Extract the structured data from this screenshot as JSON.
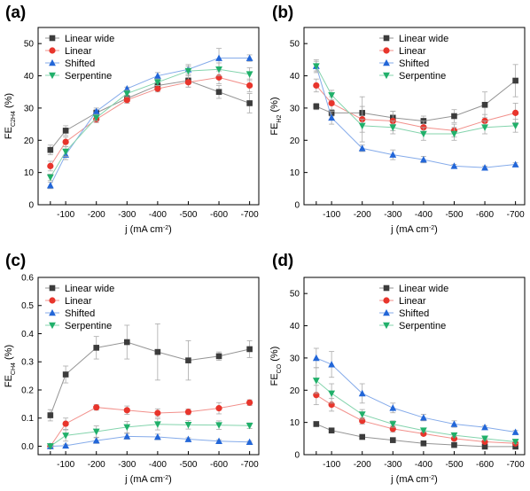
{
  "figure": {
    "styles": {
      "Linear wide": {
        "color": "#3c3c3c",
        "marker": "square"
      },
      "Linear": {
        "color": "#e8352c",
        "marker": "circle"
      },
      "Shifted": {
        "color": "#2266d8",
        "marker": "triangle-up"
      },
      "Serpentine": {
        "color": "#20b06a",
        "marker": "triangle-down"
      }
    }
  },
  "chart_data": [
    {
      "panel": "(a)",
      "type": "line",
      "xlabel": "j (mA cm-2)",
      "xlabel_main": "j (mA cm",
      "xlabel_sup": "-2",
      "xlabel_end": ")",
      "ylabel_main": "FE",
      "ylabel_sub": "C2H4",
      "ylabel_end": " (%)",
      "x": [
        -50,
        -100,
        -200,
        -300,
        -400,
        -500,
        -600,
        -700
      ],
      "xtick_labels": [
        "",
        "-100",
        "-200",
        "-300",
        "-400",
        "-500",
        "-600",
        "-700"
      ],
      "ylim": [
        0,
        55
      ],
      "yticks": [
        0,
        10,
        20,
        30,
        40,
        50
      ],
      "legend": "top-left",
      "series": [
        {
          "name": "Linear wide",
          "values": [
            17,
            23,
            28.5,
            33,
            37,
            38.5,
            35,
            31.5
          ],
          "errors": [
            1.5,
            1.5,
            1,
            1,
            1,
            2,
            2,
            3
          ]
        },
        {
          "name": "Linear",
          "values": [
            12,
            19.5,
            26.5,
            32.5,
            36,
            38,
            39.5,
            37
          ],
          "errors": [
            1.5,
            1.5,
            1,
            1,
            1,
            1.5,
            2,
            2
          ]
        },
        {
          "name": "Shifted",
          "values": [
            6,
            15.5,
            29,
            36,
            40,
            42,
            45.5,
            45.5
          ],
          "errors": [
            1,
            1.5,
            1,
            0.5,
            1,
            1.5,
            3,
            1
          ]
        },
        {
          "name": "Serpentine",
          "values": [
            8.5,
            16.5,
            27,
            34.5,
            38,
            41.5,
            42,
            40.5
          ],
          "errors": [
            1,
            1.5,
            1,
            1,
            1,
            1.5,
            2,
            2
          ]
        }
      ]
    },
    {
      "panel": "(b)",
      "type": "line",
      "xlabel": "j (mA cm-2)",
      "xlabel_main": "j (mA cm",
      "xlabel_sup": "-2",
      "xlabel_end": ")",
      "ylabel_main": "FE",
      "ylabel_sub": "H2",
      "ylabel_end": " (%)",
      "x": [
        -50,
        -100,
        -200,
        -300,
        -400,
        -500,
        -600,
        -700
      ],
      "xtick_labels": [
        "",
        "-100",
        "-200",
        "-300",
        "-400",
        "-500",
        "-600",
        "-700"
      ],
      "ylim": [
        0,
        55
      ],
      "yticks": [
        0,
        10,
        20,
        30,
        40,
        50
      ],
      "legend": "top-right",
      "series": [
        {
          "name": "Linear wide",
          "values": [
            30.5,
            28.5,
            28.5,
            27,
            26,
            27.5,
            31,
            38.5
          ],
          "errors": [
            1,
            1,
            2,
            2,
            1.5,
            2,
            4,
            5
          ]
        },
        {
          "name": "Linear",
          "values": [
            37,
            31.5,
            26.5,
            26,
            24,
            23,
            26,
            28.5
          ],
          "errors": [
            2,
            2,
            7,
            3,
            2,
            2,
            2,
            3
          ]
        },
        {
          "name": "Shifted",
          "values": [
            43,
            27,
            17.5,
            15.5,
            14,
            12,
            11.5,
            12.5
          ],
          "errors": [
            2,
            2,
            1,
            1.5,
            1,
            0.5,
            0.5,
            0.5
          ]
        },
        {
          "name": "Serpentine",
          "values": [
            43,
            34,
            24.5,
            24,
            22,
            22,
            24,
            24.5
          ],
          "errors": [
            1.5,
            1.5,
            2,
            2,
            2,
            2,
            2,
            2
          ]
        }
      ]
    },
    {
      "panel": "(c)",
      "type": "line",
      "xlabel": "j (mA cm-2)",
      "xlabel_main": "j (mA cm",
      "xlabel_sup": "-2",
      "xlabel_end": ")",
      "ylabel_main": "FE",
      "ylabel_sub": "CH4",
      "ylabel_end": " (%)",
      "x": [
        -50,
        -100,
        -200,
        -300,
        -400,
        -500,
        -600,
        -700
      ],
      "xtick_labels": [
        "",
        "-100",
        "-200",
        "-300",
        "-400",
        "-500",
        "-600",
        "-700"
      ],
      "ylim": [
        -0.03,
        0.6
      ],
      "yticks": [
        0.0,
        0.1,
        0.2,
        0.3,
        0.4,
        0.5,
        0.6
      ],
      "ytick_labels": [
        "0.0",
        "0.1",
        "0.2",
        "0.3",
        "0.4",
        "0.5",
        "0.6"
      ],
      "legend": "top-left",
      "series": [
        {
          "name": "Linear wide",
          "values": [
            0.11,
            0.255,
            0.35,
            0.37,
            0.335,
            0.305,
            0.32,
            0.345
          ],
          "errors": [
            0.02,
            0.03,
            0.04,
            0.06,
            0.1,
            0.07,
            0.015,
            0.03
          ]
        },
        {
          "name": "Linear",
          "values": [
            0.0,
            0.08,
            0.138,
            0.128,
            0.118,
            0.122,
            0.135,
            0.155
          ],
          "errors": [
            0.005,
            0.02,
            0.01,
            0.015,
            0.015,
            0.01,
            0.02,
            0.01
          ]
        },
        {
          "name": "Shifted",
          "values": [
            0.0,
            0.002,
            0.02,
            0.035,
            0.033,
            0.025,
            0.018,
            0.015
          ],
          "errors": [
            0.003,
            0.005,
            0.01,
            0.01,
            0.01,
            0.005,
            0.005,
            0.003
          ]
        },
        {
          "name": "Serpentine",
          "values": [
            0.0,
            0.038,
            0.052,
            0.068,
            0.078,
            0.076,
            0.075,
            0.073
          ],
          "errors": [
            0.003,
            0.02,
            0.02,
            0.02,
            0.02,
            0.015,
            0.015,
            0.01
          ]
        }
      ]
    },
    {
      "panel": "(d)",
      "type": "line",
      "xlabel": "j (mA cm-2)",
      "xlabel_main": "j (mA cm",
      "xlabel_sup": "-2",
      "xlabel_end": ")",
      "ylabel_main": "FE",
      "ylabel_sub": "CO",
      "ylabel_end": " (%)",
      "x": [
        -50,
        -100,
        -200,
        -300,
        -400,
        -500,
        -600,
        -700
      ],
      "xtick_labels": [
        "",
        "-100",
        "-200",
        "-300",
        "-400",
        "-500",
        "-600",
        "-700"
      ],
      "ylim": [
        0,
        55
      ],
      "yticks": [
        0,
        10,
        20,
        30,
        40,
        50
      ],
      "legend": "top-right",
      "series": [
        {
          "name": "Linear wide",
          "values": [
            9.5,
            7.5,
            5.5,
            4.5,
            3.5,
            3,
            2.5,
            2.5
          ],
          "errors": [
            0.5,
            0.5,
            0.5,
            0.5,
            0.3,
            0.3,
            0.3,
            0.3
          ]
        },
        {
          "name": "Linear",
          "values": [
            18.5,
            15.5,
            10.5,
            8,
            6.5,
            5,
            4,
            3.5
          ],
          "errors": [
            3,
            2,
            1,
            1,
            0.5,
            0.5,
            0.5,
            0.5
          ]
        },
        {
          "name": "Shifted",
          "values": [
            30,
            28,
            19,
            14.5,
            11.5,
            9.5,
            8.5,
            7
          ],
          "errors": [
            3,
            4,
            3,
            1.5,
            1,
            1,
            0.5,
            0.5
          ]
        },
        {
          "name": "Serpentine",
          "values": [
            23,
            19,
            12.5,
            9.5,
            7.5,
            6,
            5,
            4
          ],
          "errors": [
            4,
            3,
            1.5,
            1,
            0.5,
            0.5,
            0.5,
            0.5
          ]
        }
      ]
    }
  ]
}
